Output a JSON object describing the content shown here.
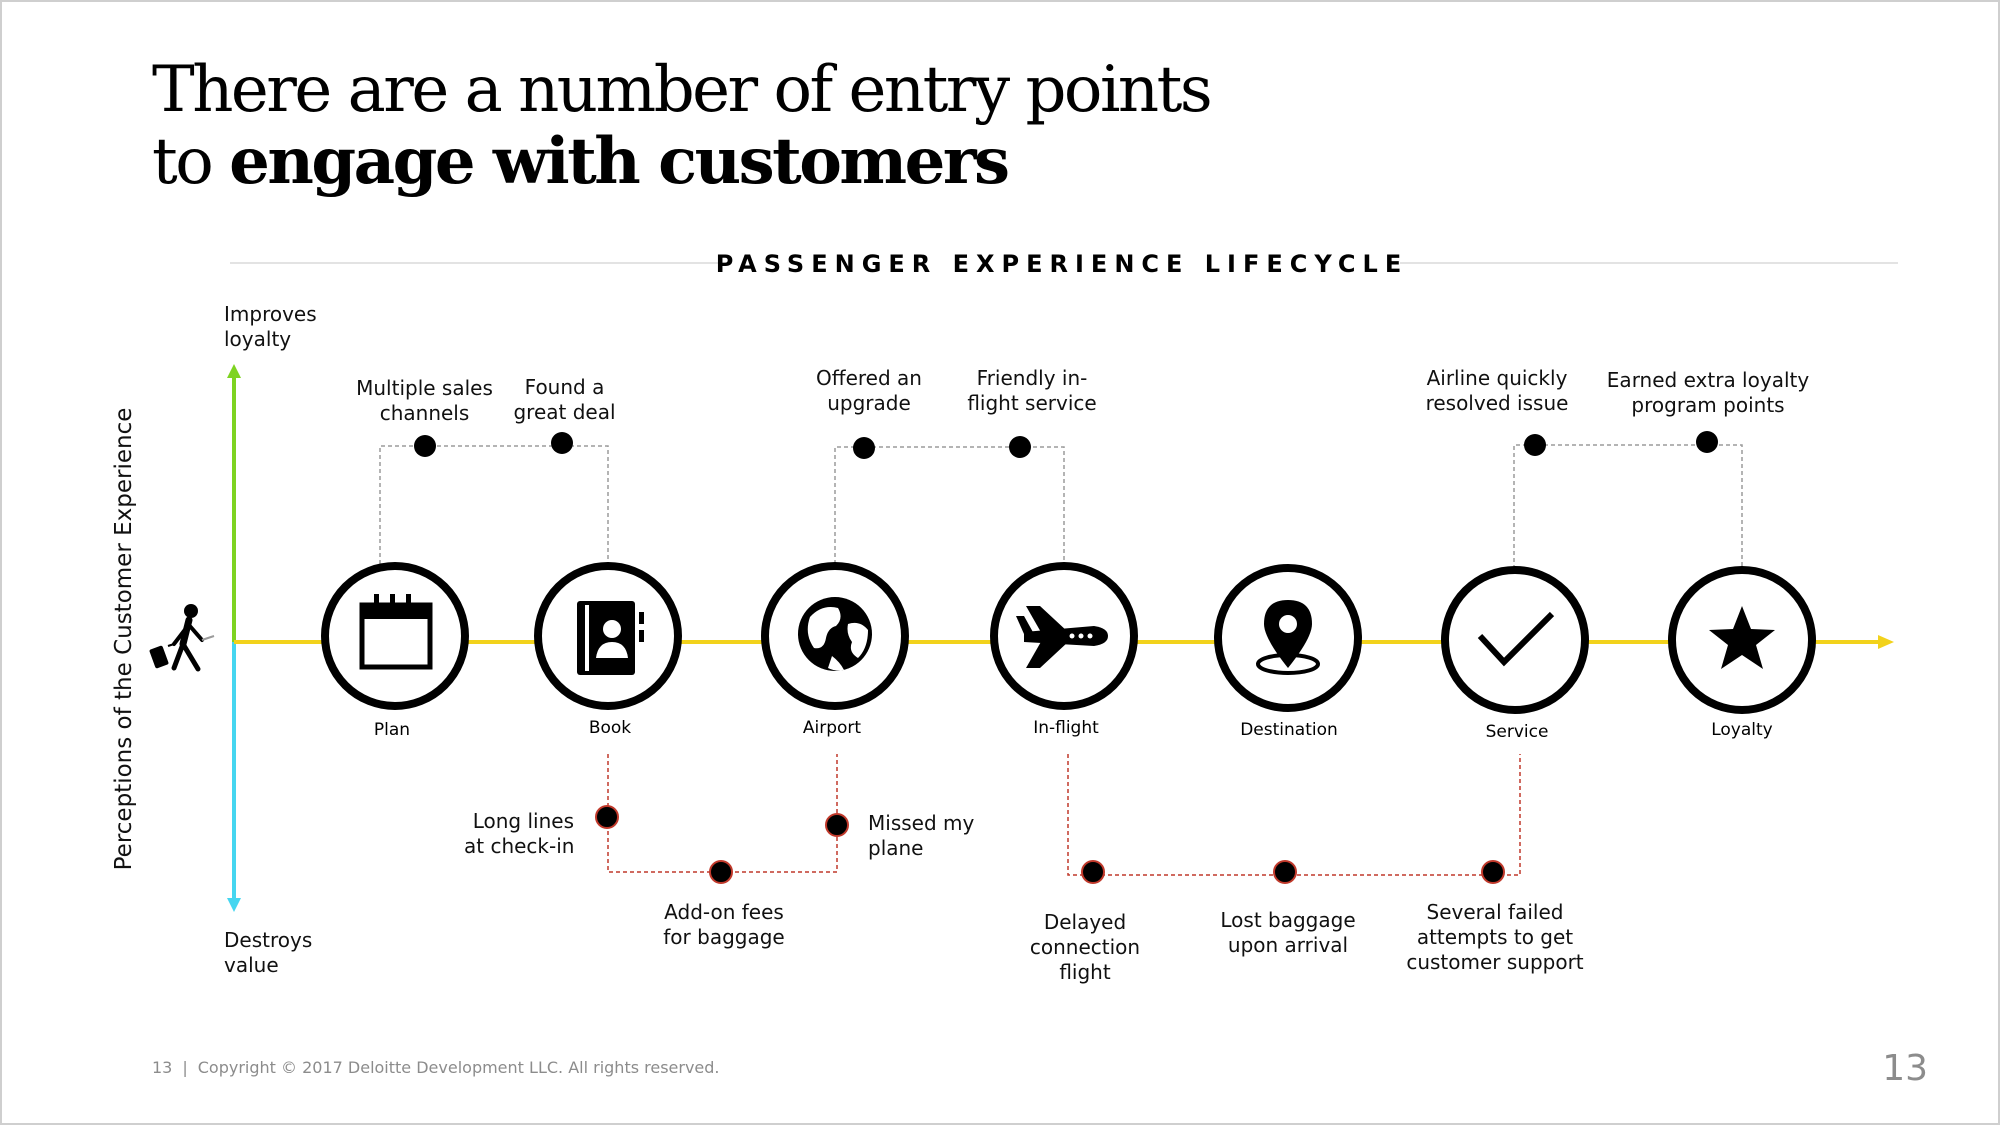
{
  "title": {
    "line1": "There are a number of entry points",
    "line2_prefix": "to ",
    "line2_bold": "engage with customers"
  },
  "section_title": "PASSENGER EXPERIENCE LIFECYCLE",
  "axis": {
    "label": "Perceptions of the Customer Experience",
    "top_label": "Improves\nloyalty",
    "bottom_label": "Destroys\nvalue"
  },
  "stages": [
    {
      "label": "Plan",
      "icon": "calendar-icon"
    },
    {
      "label": "Book",
      "icon": "contact-book-icon"
    },
    {
      "label": "Airport",
      "icon": "globe-icon"
    },
    {
      "label": "In-flight",
      "icon": "airplane-icon"
    },
    {
      "label": "Destination",
      "icon": "map-pin-icon"
    },
    {
      "label": "Service",
      "icon": "checkmark-icon"
    },
    {
      "label": "Loyalty",
      "icon": "star-icon"
    }
  ],
  "positive_events": [
    "Multiple sales\nchannels",
    "Found a\ngreat deal",
    "Offered an\nupgrade",
    "Friendly in-\nflight service",
    "Airline quickly\nresolved issue",
    "Earned extra loyalty\nprogram points"
  ],
  "negative_events": [
    "Long lines\nat check-in",
    "Add-on fees\nfor baggage",
    "Missed my\nplane",
    "Delayed\nconnection\nflight",
    "Lost baggage\nupon arrival",
    "Several failed\nattempts to get\ncustomer support"
  ],
  "footer": {
    "page": "13",
    "separator": "|",
    "copyright": "Copyright © 2017 Deloitte Development LLC. All rights reserved."
  },
  "page_number": "13",
  "colors": {
    "timeline": "#f2d21b",
    "axis_positive": "#7ed321",
    "axis_negative": "#45d6f0",
    "negative_dot_outline": "#c0392b",
    "connector_positive": "#9b9b9b",
    "connector_negative": "#c0392b"
  }
}
